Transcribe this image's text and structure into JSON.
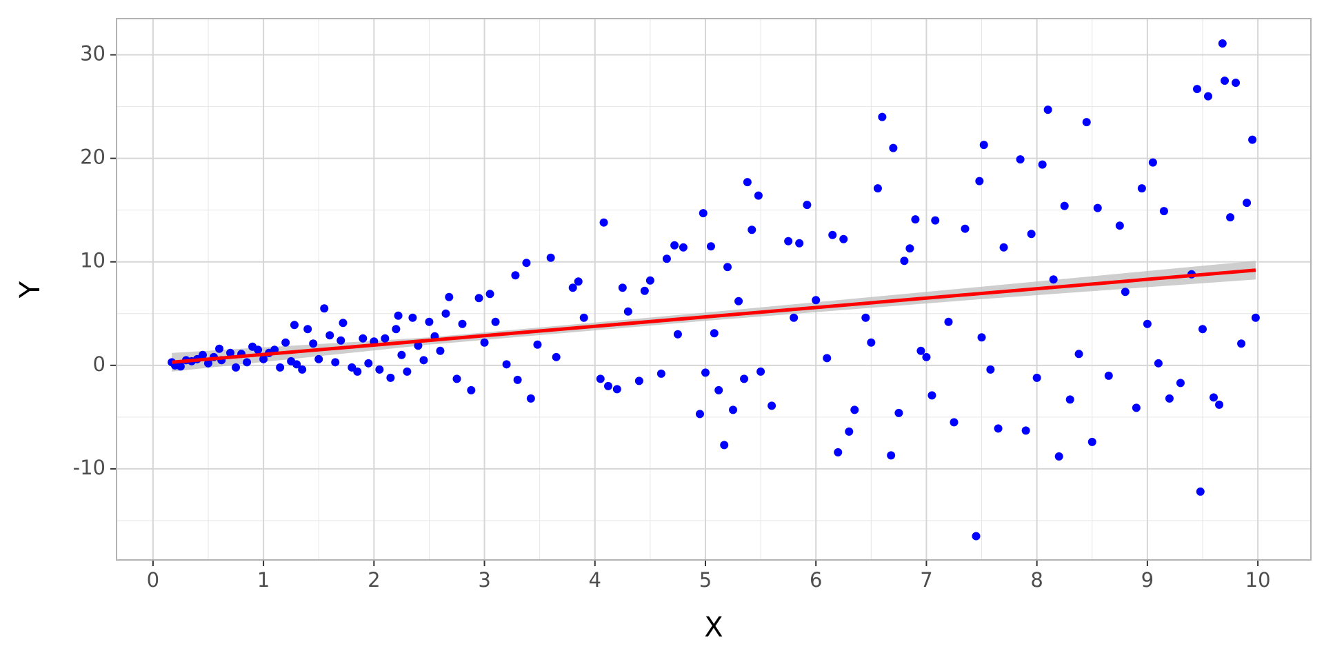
{
  "chart_data": {
    "type": "scatter",
    "x_label": "X",
    "y_label": "Y",
    "xlim": [
      -0.33,
      10.48
    ],
    "ylim": [
      -18.8,
      33.5
    ],
    "xticks": [
      0,
      1,
      2,
      3,
      4,
      5,
      6,
      7,
      8,
      9,
      10
    ],
    "yticks": [
      -10,
      0,
      10,
      20,
      30
    ],
    "x_minor_ticks": [
      0.5,
      1.5,
      2.5,
      3.5,
      4.5,
      5.5,
      6.5,
      7.5,
      8.5,
      9.5
    ],
    "y_minor_ticks": [
      -15,
      -5,
      5,
      15,
      25
    ],
    "grid": true,
    "points": {
      "color": "#0000ff",
      "x": [
        0.17,
        0.2,
        0.25,
        0.3,
        0.35,
        0.4,
        0.45,
        0.5,
        0.55,
        0.6,
        0.62,
        0.7,
        0.75,
        0.8,
        0.85,
        0.9,
        0.95,
        1.0,
        1.05,
        1.1,
        1.15,
        1.2,
        1.25,
        1.28,
        1.3,
        1.35,
        1.4,
        1.45,
        1.5,
        1.55,
        1.6,
        1.65,
        1.7,
        1.72,
        1.8,
        1.85,
        1.9,
        1.95,
        2.0,
        2.05,
        2.1,
        2.15,
        2.2,
        2.22,
        2.25,
        2.3,
        2.35,
        2.4,
        2.45,
        2.5,
        2.55,
        2.6,
        2.65,
        2.68,
        2.75,
        2.8,
        2.88,
        2.95,
        3.0,
        3.05,
        3.1,
        3.2,
        3.28,
        3.3,
        3.38,
        3.42,
        3.48,
        3.6,
        3.65,
        3.8,
        3.85,
        3.9,
        4.05,
        4.08,
        4.12,
        4.2,
        4.25,
        4.3,
        4.4,
        4.45,
        4.5,
        4.6,
        4.65,
        4.72,
        4.75,
        4.8,
        4.95,
        4.98,
        5.0,
        5.05,
        5.08,
        5.12,
        5.17,
        5.2,
        5.25,
        5.3,
        5.35,
        5.38,
        5.42,
        5.48,
        5.5,
        5.6,
        5.75,
        5.8,
        5.85,
        5.92,
        6.0,
        6.1,
        6.15,
        6.2,
        6.25,
        6.3,
        6.35,
        6.45,
        6.5,
        6.56,
        6.6,
        6.68,
        6.7,
        6.75,
        6.8,
        6.85,
        6.9,
        6.95,
        7.0,
        7.05,
        7.08,
        7.2,
        7.25,
        7.35,
        7.45,
        7.48,
        7.5,
        7.52,
        7.58,
        7.65,
        7.7,
        7.85,
        7.9,
        7.95,
        8.0,
        8.05,
        8.1,
        8.15,
        8.2,
        8.25,
        8.3,
        8.38,
        8.45,
        8.5,
        8.55,
        8.65,
        8.75,
        8.8,
        8.9,
        8.95,
        9.0,
        9.05,
        9.1,
        9.15,
        9.2,
        9.3,
        9.4,
        9.45,
        9.48,
        9.5,
        9.55,
        9.6,
        9.65,
        9.68,
        9.7,
        9.75,
        9.8,
        9.85,
        9.9,
        9.95,
        9.98
      ],
      "y": [
        0.3,
        0.0,
        -0.1,
        0.5,
        0.4,
        0.6,
        1.0,
        0.2,
        0.8,
        1.6,
        0.5,
        1.2,
        -0.2,
        1.1,
        0.3,
        1.8,
        1.5,
        0.6,
        1.2,
        1.5,
        -0.2,
        2.2,
        0.4,
        3.9,
        0.1,
        -0.4,
        3.5,
        2.1,
        0.6,
        5.5,
        2.9,
        0.3,
        2.4,
        4.1,
        -0.2,
        -0.6,
        2.6,
        0.2,
        2.3,
        -0.4,
        2.6,
        -1.2,
        3.5,
        4.8,
        1.0,
        -0.6,
        4.6,
        1.9,
        0.5,
        4.2,
        2.8,
        1.4,
        5.0,
        6.6,
        -1.3,
        4.0,
        -2.4,
        6.5,
        2.2,
        6.9,
        4.2,
        0.1,
        8.7,
        -1.4,
        9.9,
        -3.2,
        2.0,
        10.4,
        0.8,
        7.5,
        8.1,
        4.6,
        -1.3,
        13.8,
        -2.0,
        -2.3,
        7.5,
        5.2,
        -1.5,
        7.2,
        8.2,
        -0.8,
        10.3,
        11.6,
        3.0,
        11.4,
        -4.7,
        14.7,
        -0.7,
        11.5,
        3.1,
        -2.4,
        -7.7,
        9.5,
        -4.3,
        6.2,
        -1.3,
        17.7,
        13.1,
        16.4,
        -0.6,
        -3.9,
        12.0,
        4.6,
        11.8,
        15.5,
        6.3,
        0.7,
        12.6,
        -8.4,
        12.2,
        -6.4,
        -4.3,
        4.6,
        2.2,
        17.1,
        24.0,
        -8.7,
        21.0,
        -4.6,
        10.1,
        11.3,
        14.1,
        1.4,
        0.8,
        -2.9,
        14.0,
        4.2,
        -5.5,
        13.2,
        -16.5,
        17.8,
        2.7,
        21.3,
        -0.4,
        -6.1,
        11.4,
        19.9,
        -6.3,
        12.7,
        -1.2,
        19.4,
        24.7,
        8.3,
        -8.8,
        15.4,
        -3.3,
        1.1,
        23.5,
        -7.4,
        15.2,
        -1.0,
        13.5,
        7.1,
        -4.1,
        17.1,
        4.0,
        19.6,
        0.2,
        14.9,
        -3.2,
        -1.7,
        8.8,
        26.7,
        -12.2,
        3.5,
        26.0,
        -3.1,
        -3.8,
        31.1,
        27.5,
        14.3,
        27.3,
        2.1,
        15.7,
        21.8,
        4.6
      ]
    },
    "band": {
      "color": "#bebebe",
      "x": [
        0.17,
        2.5,
        5,
        7.5,
        9.98
      ],
      "lower": [
        -0.6,
        2.0,
        4.3,
        6.4,
        8.3
      ],
      "upper": [
        1.2,
        2.7,
        5.1,
        7.6,
        10.1
      ]
    },
    "fit": {
      "color": "#ff0000",
      "x": [
        0.17,
        9.98
      ],
      "y": [
        0.3,
        9.2
      ]
    }
  }
}
